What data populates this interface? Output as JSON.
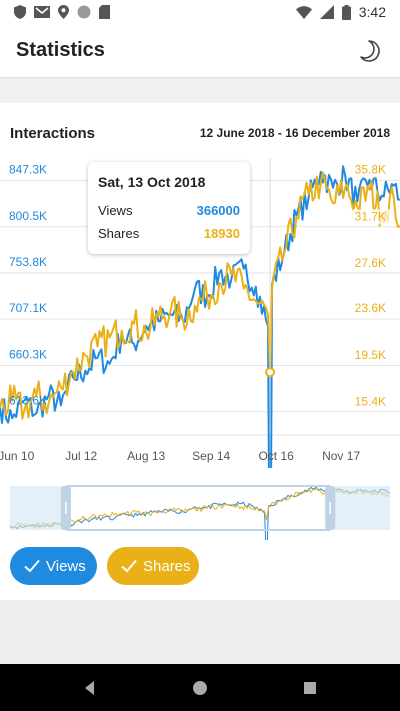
{
  "status_bar": {
    "time": "3:42",
    "icons": [
      "shield-icon",
      "gmail-icon",
      "location-icon",
      "circle-icon",
      "sd-card-icon",
      "wifi-icon",
      "signal-icon",
      "battery-icon"
    ]
  },
  "app_bar": {
    "title": "Statistics",
    "theme_icon": "moon-icon"
  },
  "card": {
    "title": "Interactions",
    "date_range": "12 June 2018 - 16 December 2018"
  },
  "tooltip": {
    "date": "Sat, 13 Oct 2018",
    "rows": [
      {
        "label": "Views",
        "value": "366000",
        "color": "#1e8ae0"
      },
      {
        "label": "Shares",
        "value": "18930",
        "color": "#e9b117"
      }
    ]
  },
  "toggles": [
    {
      "label": "Views",
      "checked": true,
      "color": "#1e8ae0"
    },
    {
      "label": "Shares",
      "checked": true,
      "color": "#e9b117"
    }
  ],
  "chart_data": {
    "type": "line",
    "x_ticks": [
      "Jun 10",
      "Jul 12",
      "Aug 13",
      "Sep 14",
      "Oct 16",
      "Nov 17"
    ],
    "y_left_ticks": [
      "613.6K",
      "660.3K",
      "707.1K",
      "753.8K",
      "800.5K",
      "847.3K"
    ],
    "y_right_ticks": [
      "15.4K",
      "19.5K",
      "23.6K",
      "27.6K",
      "31.7K",
      "35.8K"
    ],
    "y_left_range": [
      590000,
      870000
    ],
    "y_right_range": [
      13400,
      37800
    ],
    "x_range": [
      "2018-06-02",
      "2018-12-16"
    ],
    "grid": true,
    "legend": "bottom toggle buttons",
    "selected_date": "2018-10-13",
    "series": [
      {
        "name": "Views",
        "axis": "left",
        "color": "#1e8ae0",
        "points": [
          [
            "2018-06-02",
            618000
          ],
          [
            "2018-06-08",
            607000
          ],
          [
            "2018-06-14",
            625000
          ],
          [
            "2018-06-20",
            612000
          ],
          [
            "2018-06-26",
            630000
          ],
          [
            "2018-07-02",
            620000
          ],
          [
            "2018-07-08",
            648000
          ],
          [
            "2018-07-14",
            655000
          ],
          [
            "2018-07-20",
            668000
          ],
          [
            "2018-07-26",
            662000
          ],
          [
            "2018-08-01",
            690000
          ],
          [
            "2018-08-07",
            682000
          ],
          [
            "2018-08-13",
            700000
          ],
          [
            "2018-08-19",
            705000
          ],
          [
            "2018-08-25",
            712000
          ],
          [
            "2018-08-31",
            706000
          ],
          [
            "2018-09-06",
            738000
          ],
          [
            "2018-09-12",
            730000
          ],
          [
            "2018-09-18",
            754000
          ],
          [
            "2018-09-24",
            748000
          ],
          [
            "2018-09-30",
            758000
          ],
          [
            "2018-10-06",
            740000
          ],
          [
            "2018-10-12",
            700000
          ],
          [
            "2018-10-13",
            366000
          ],
          [
            "2018-10-14",
            742000
          ],
          [
            "2018-10-20",
            775000
          ],
          [
            "2018-10-26",
            812000
          ],
          [
            "2018-11-01",
            830000
          ],
          [
            "2018-11-07",
            856000
          ],
          [
            "2018-11-13",
            840000
          ],
          [
            "2018-11-19",
            852000
          ],
          [
            "2018-11-25",
            826000
          ],
          [
            "2018-12-01",
            848000
          ],
          [
            "2018-12-07",
            832000
          ],
          [
            "2018-12-13",
            842000
          ],
          [
            "2018-12-16",
            828000
          ]
        ]
      },
      {
        "name": "Shares",
        "axis": "right",
        "color": "#e9b117",
        "points": [
          [
            "2018-06-02",
            15800
          ],
          [
            "2018-06-08",
            16400
          ],
          [
            "2018-06-14",
            15600
          ],
          [
            "2018-06-20",
            16900
          ],
          [
            "2018-06-26",
            16200
          ],
          [
            "2018-07-02",
            17600
          ],
          [
            "2018-07-08",
            19000
          ],
          [
            "2018-07-14",
            20400
          ],
          [
            "2018-07-20",
            21200
          ],
          [
            "2018-07-26",
            22000
          ],
          [
            "2018-08-01",
            22600
          ],
          [
            "2018-08-07",
            23200
          ],
          [
            "2018-08-13",
            22400
          ],
          [
            "2018-08-19",
            23800
          ],
          [
            "2018-08-25",
            24400
          ],
          [
            "2018-08-31",
            23600
          ],
          [
            "2018-09-06",
            24800
          ],
          [
            "2018-09-12",
            25600
          ],
          [
            "2018-09-18",
            26800
          ],
          [
            "2018-09-24",
            27500
          ],
          [
            "2018-09-30",
            26300
          ],
          [
            "2018-10-06",
            25200
          ],
          [
            "2018-10-12",
            24000
          ],
          [
            "2018-10-13",
            18930
          ],
          [
            "2018-10-14",
            26400
          ],
          [
            "2018-10-20",
            29500
          ],
          [
            "2018-10-26",
            32600
          ],
          [
            "2018-11-01",
            34600
          ],
          [
            "2018-11-07",
            35600
          ],
          [
            "2018-11-13",
            33800
          ],
          [
            "2018-11-19",
            35200
          ],
          [
            "2018-11-25",
            33500
          ],
          [
            "2018-12-01",
            35000
          ],
          [
            "2018-12-07",
            33000
          ],
          [
            "2018-12-13",
            34200
          ],
          [
            "2018-12-16",
            31800
          ]
        ]
      }
    ],
    "minimap": {
      "window_start": "2018-07-01",
      "window_end": "2018-11-15"
    }
  }
}
